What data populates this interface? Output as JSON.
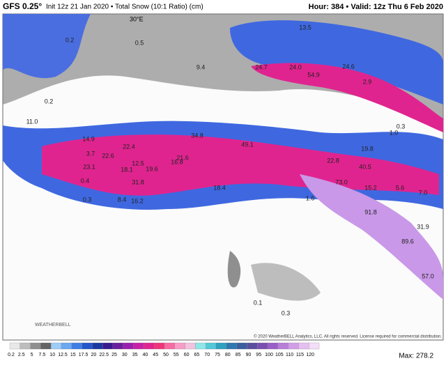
{
  "header": {
    "model": "GFS 0.25°",
    "init": "Init 12z 21 Jan 2020 • Total Snow (10:1 Ratio) (cm)",
    "valid": "Hour: 384 • Valid: 12z Thu 6 Feb 2020"
  },
  "map": {
    "longitude_label": "30°E",
    "labels": [
      "13.5",
      "0.2",
      "0.5",
      "9.4",
      "24.7",
      "24.0",
      "24.6",
      "54.9",
      "2.9",
      "0.2",
      "11.0",
      "0.3",
      "1.0",
      "14.9",
      "34.8",
      "49.1",
      "22.4",
      "3.7",
      "22.6",
      "21.6",
      "19.8",
      "12.5",
      "16.8",
      "23.1",
      "18.1",
      "19.6",
      "22.8",
      "40.5",
      "0.4",
      "31.8",
      "18.4",
      "73.0",
      "15.2",
      "5.6",
      "7.0",
      "0.3",
      "8.4",
      "16.2",
      "1.6",
      "91.8",
      "31.9",
      "89.6",
      "57.0",
      "0.1",
      "0.3"
    ],
    "logo": "WEATHERBELL",
    "copyright": "© 2020 WeatherBELL Analytics, LLC. All rights reserved. License required for commercial distribution."
  },
  "colorbar": {
    "labels": [
      "0.2",
      "2.5",
      "5",
      "7.5",
      "10",
      "12.5",
      "15",
      "17.5",
      "20",
      "22.5",
      "25",
      "30",
      "35",
      "40",
      "45",
      "50",
      "55",
      "60",
      "65",
      "70",
      "75",
      "80",
      "85",
      "90",
      "95",
      "100",
      "105",
      "110",
      "115",
      "120"
    ],
    "colors": [
      "#e8e8e8",
      "#bdbdbd",
      "#8f8f8f",
      "#646464",
      "#9ecbf7",
      "#6aa8f0",
      "#3f7fe6",
      "#2457c9",
      "#1a3aa3",
      "#3a1a8f",
      "#6a1f9e",
      "#9b1fae",
      "#c81fa8",
      "#e0248f",
      "#f0357a",
      "#f76aa4",
      "#f79cc6",
      "#f2c2e0",
      "#8ee6e6",
      "#52c8d8",
      "#2fa0c0",
      "#2f78b0",
      "#3a5ea0",
      "#5a4ea0",
      "#7a4eb0",
      "#9a5ec8",
      "#b97ed8",
      "#d29ee6",
      "#e4bff0",
      "#f3ddf8"
    ],
    "max_label": "Max:",
    "max_value": "278.2"
  }
}
